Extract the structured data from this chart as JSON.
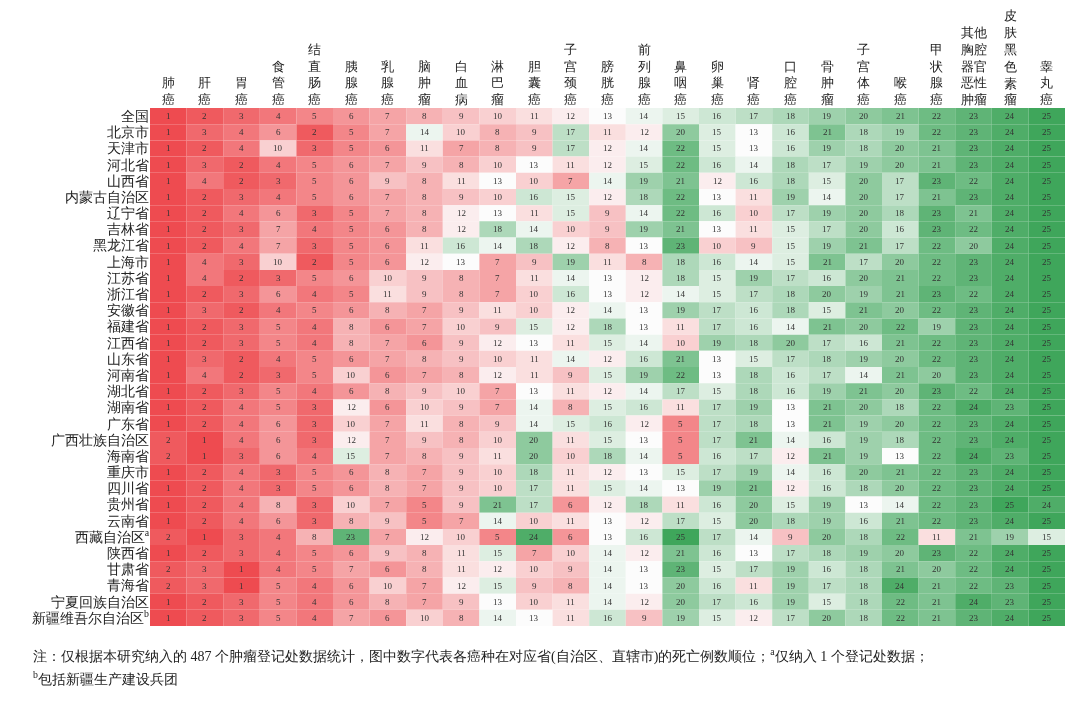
{
  "chart_data": {
    "type": "heatmap",
    "categories": [
      "肺癌",
      "肝癌",
      "胃癌",
      "食管癌",
      "结直肠癌",
      "胰腺癌",
      "乳腺癌",
      "脑肿瘤",
      "白血病",
      "淋巴瘤",
      "胆囊癌",
      "子宫颈癌",
      "膀胱癌",
      "前列腺癌",
      "鼻咽癌",
      "卵巢癌",
      "肾癌",
      "口腔癌",
      "骨肿瘤",
      "子宫体癌",
      "喉癌",
      "甲状腺癌",
      "其他胸腔器官恶性肿瘤",
      "皮肤黑色素瘤",
      "睾丸癌"
    ],
    "y_categories": [
      "全国",
      "北京市",
      "天津市",
      "河北省",
      "山西省",
      "内蒙古自治区",
      "辽宁省",
      "吉林省",
      "黑龙江省",
      "上海市",
      "江苏省",
      "浙江省",
      "安徽省",
      "福建省",
      "江西省",
      "山东省",
      "河南省",
      "湖北省",
      "湖南省",
      "广东省",
      "广西壮族自治区",
      "海南省",
      "重庆市",
      "四川省",
      "贵州省",
      "云南省",
      "西藏自治区$^{a}$",
      "陕西省",
      "甘肃省",
      "青海省",
      "宁夏回族自治区",
      "新疆维吾尔自治区$^{b}$"
    ],
    "cells": [
      [
        1,
        2,
        3,
        4,
        5,
        6,
        7,
        8,
        9,
        10,
        11,
        12,
        13,
        14,
        15,
        16,
        17,
        18,
        19,
        20,
        21,
        22,
        23,
        24,
        25
      ],
      [
        1,
        3,
        4,
        6,
        2,
        5,
        7,
        14,
        10,
        8,
        9,
        17,
        11,
        12,
        20,
        15,
        13,
        16,
        21,
        18,
        19,
        22,
        23,
        24,
        25
      ],
      [
        1,
        2,
        4,
        10,
        3,
        5,
        6,
        11,
        7,
        8,
        9,
        17,
        12,
        14,
        22,
        15,
        13,
        16,
        19,
        18,
        20,
        21,
        23,
        24,
        25
      ],
      [
        1,
        3,
        2,
        4,
        5,
        6,
        7,
        9,
        8,
        10,
        13,
        11,
        12,
        15,
        22,
        16,
        14,
        18,
        17,
        19,
        20,
        21,
        23,
        24,
        25
      ],
      [
        1,
        4,
        2,
        3,
        5,
        6,
        9,
        8,
        11,
        13,
        10,
        7,
        14,
        19,
        21,
        12,
        16,
        18,
        15,
        20,
        17,
        23,
        22,
        24,
        25
      ],
      [
        1,
        2,
        3,
        4,
        5,
        6,
        7,
        8,
        9,
        10,
        16,
        15,
        12,
        18,
        22,
        13,
        11,
        19,
        14,
        20,
        17,
        21,
        23,
        24,
        25
      ],
      [
        1,
        2,
        4,
        6,
        3,
        5,
        7,
        8,
        12,
        13,
        11,
        15,
        9,
        14,
        22,
        16,
        10,
        17,
        19,
        20,
        18,
        23,
        21,
        24,
        25
      ],
      [
        1,
        2,
        3,
        7,
        4,
        5,
        6,
        8,
        12,
        18,
        14,
        10,
        9,
        19,
        21,
        13,
        11,
        15,
        17,
        20,
        16,
        23,
        22,
        24,
        25
      ],
      [
        1,
        2,
        4,
        7,
        3,
        5,
        6,
        11,
        16,
        14,
        18,
        12,
        8,
        13,
        23,
        10,
        9,
        15,
        19,
        21,
        17,
        22,
        20,
        24,
        25
      ],
      [
        1,
        4,
        3,
        10,
        2,
        5,
        6,
        12,
        13,
        7,
        9,
        19,
        11,
        8,
        18,
        16,
        14,
        15,
        21,
        17,
        20,
        22,
        23,
        24,
        25
      ],
      [
        1,
        4,
        2,
        3,
        5,
        6,
        10,
        9,
        8,
        7,
        11,
        14,
        13,
        12,
        18,
        15,
        19,
        17,
        16,
        20,
        21,
        22,
        23,
        24,
        25
      ],
      [
        1,
        2,
        3,
        6,
        4,
        5,
        11,
        9,
        8,
        7,
        10,
        16,
        13,
        12,
        14,
        15,
        17,
        18,
        20,
        19,
        21,
        23,
        22,
        24,
        25
      ],
      [
        1,
        3,
        2,
        4,
        5,
        6,
        8,
        7,
        9,
        11,
        10,
        12,
        14,
        13,
        19,
        17,
        16,
        18,
        15,
        21,
        20,
        22,
        23,
        24,
        25
      ],
      [
        1,
        2,
        3,
        5,
        4,
        8,
        6,
        7,
        10,
        9,
        15,
        12,
        18,
        13,
        11,
        17,
        16,
        14,
        21,
        20,
        22,
        19,
        23,
        24,
        25
      ],
      [
        1,
        2,
        3,
        5,
        4,
        8,
        7,
        6,
        9,
        12,
        13,
        11,
        15,
        14,
        10,
        19,
        18,
        20,
        17,
        16,
        21,
        22,
        23,
        24,
        25
      ],
      [
        1,
        3,
        2,
        4,
        5,
        6,
        7,
        8,
        9,
        10,
        11,
        14,
        12,
        16,
        21,
        13,
        15,
        17,
        18,
        19,
        20,
        22,
        23,
        24,
        25
      ],
      [
        1,
        4,
        2,
        3,
        5,
        10,
        6,
        7,
        8,
        12,
        11,
        9,
        15,
        19,
        22,
        13,
        18,
        16,
        17,
        14,
        21,
        20,
        23,
        24,
        25
      ],
      [
        1,
        2,
        3,
        5,
        4,
        6,
        8,
        9,
        10,
        7,
        13,
        11,
        12,
        14,
        17,
        15,
        18,
        16,
        19,
        21,
        20,
        23,
        22,
        24,
        25
      ],
      [
        1,
        2,
        4,
        5,
        3,
        12,
        6,
        10,
        9,
        7,
        14,
        8,
        15,
        16,
        11,
        17,
        19,
        13,
        21,
        20,
        18,
        22,
        24,
        23,
        25
      ],
      [
        1,
        2,
        4,
        6,
        3,
        10,
        7,
        11,
        8,
        9,
        14,
        15,
        16,
        12,
        5,
        17,
        18,
        13,
        21,
        19,
        20,
        22,
        23,
        24,
        25
      ],
      [
        2,
        1,
        4,
        6,
        3,
        12,
        7,
        9,
        8,
        10,
        20,
        11,
        15,
        13,
        5,
        17,
        21,
        14,
        16,
        19,
        18,
        22,
        23,
        24,
        25
      ],
      [
        2,
        1,
        3,
        6,
        4,
        15,
        7,
        8,
        9,
        11,
        20,
        10,
        18,
        14,
        5,
        16,
        17,
        12,
        21,
        19,
        13,
        22,
        24,
        23,
        25
      ],
      [
        1,
        2,
        4,
        3,
        5,
        6,
        8,
        7,
        9,
        10,
        18,
        11,
        12,
        13,
        15,
        17,
        19,
        14,
        16,
        20,
        21,
        22,
        23,
        24,
        25
      ],
      [
        1,
        2,
        4,
        3,
        5,
        6,
        8,
        7,
        9,
        10,
        17,
        11,
        15,
        14,
        13,
        19,
        21,
        12,
        16,
        18,
        20,
        22,
        23,
        24,
        25
      ],
      [
        1,
        2,
        4,
        8,
        3,
        10,
        7,
        5,
        9,
        21,
        17,
        6,
        12,
        18,
        11,
        16,
        20,
        15,
        19,
        13,
        14,
        22,
        23,
        25,
        24
      ],
      [
        1,
        2,
        4,
        6,
        3,
        8,
        9,
        5,
        7,
        14,
        10,
        11,
        13,
        12,
        17,
        15,
        20,
        18,
        19,
        16,
        21,
        22,
        23,
        24,
        25
      ],
      [
        2,
        1,
        3,
        4,
        8,
        23,
        7,
        12,
        10,
        5,
        24,
        6,
        13,
        16,
        25,
        17,
        14,
        9,
        20,
        18,
        22,
        11,
        21,
        19,
        15
      ],
      [
        1,
        2,
        3,
        4,
        5,
        6,
        9,
        8,
        11,
        15,
        7,
        10,
        14,
        12,
        21,
        16,
        13,
        17,
        18,
        19,
        20,
        23,
        22,
        24,
        25
      ],
      [
        2,
        3,
        1,
        4,
        5,
        7,
        6,
        8,
        11,
        12,
        10,
        9,
        14,
        13,
        23,
        15,
        17,
        19,
        16,
        18,
        21,
        20,
        22,
        24,
        25
      ],
      [
        2,
        3,
        1,
        5,
        4,
        6,
        10,
        7,
        12,
        15,
        9,
        8,
        14,
        13,
        20,
        16,
        11,
        19,
        17,
        18,
        24,
        21,
        22,
        23,
        25
      ],
      [
        1,
        2,
        3,
        5,
        4,
        6,
        8,
        7,
        9,
        13,
        10,
        11,
        14,
        12,
        20,
        17,
        16,
        19,
        15,
        18,
        22,
        21,
        24,
        23,
        25
      ],
      [
        1,
        2,
        3,
        5,
        4,
        7,
        6,
        10,
        8,
        14,
        13,
        11,
        16,
        9,
        19,
        15,
        12,
        17,
        20,
        18,
        22,
        21,
        23,
        24,
        25
      ]
    ],
    "data_labels": true,
    "annotations": [
      "注：仅根据本研究纳入的 487 个肿瘤登记处数据统计，图中数字代表各癌种在对应省(自治区、直辖市)的死亡例数顺位；$^{a}$仅纳入 1 个登记处数据；",
      "$^{b}$包括新疆生产建设兵团"
    ]
  }
}
